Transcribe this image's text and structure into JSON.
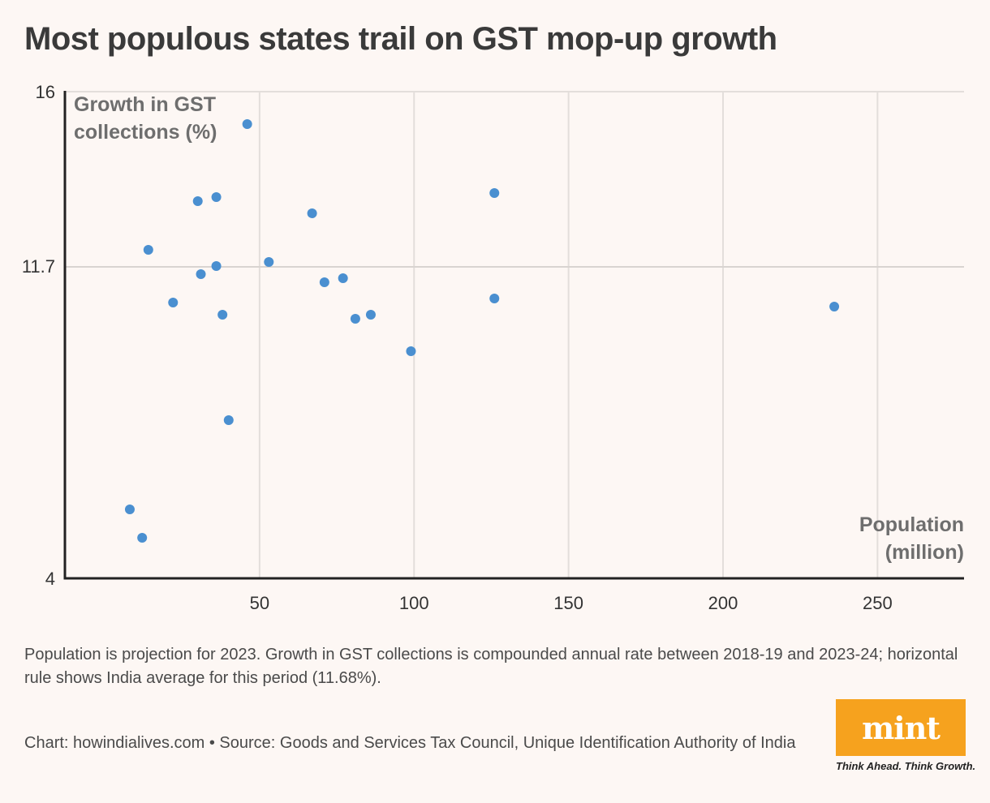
{
  "title": "Most populous states trail on GST mop-up growth",
  "chart_data": {
    "type": "scatter",
    "title": "Most populous states trail on GST mop-up growth",
    "xlabel": "Population (million)",
    "ylabel": "Growth in GST collections (%)",
    "xlim": [
      -13,
      278
    ],
    "ylim": [
      4,
      16
    ],
    "xticks": [
      50,
      100,
      150,
      200,
      250
    ],
    "yticks": [
      4,
      11.7,
      16
    ],
    "ytick_labels": [
      "4",
      "11.7",
      "16"
    ],
    "reference_line": {
      "y": 11.68,
      "label": "India average"
    },
    "point_color": "#4a8fd0",
    "points": [
      {
        "x": 46,
        "y": 15.2
      },
      {
        "x": 30,
        "y": 13.3
      },
      {
        "x": 36,
        "y": 13.4
      },
      {
        "x": 67,
        "y": 13.0
      },
      {
        "x": 126,
        "y": 13.5
      },
      {
        "x": 14,
        "y": 12.1
      },
      {
        "x": 36,
        "y": 11.7
      },
      {
        "x": 31,
        "y": 11.5
      },
      {
        "x": 53,
        "y": 11.8
      },
      {
        "x": 71,
        "y": 11.3
      },
      {
        "x": 77,
        "y": 11.4
      },
      {
        "x": 22,
        "y": 10.8
      },
      {
        "x": 38,
        "y": 10.5
      },
      {
        "x": 126,
        "y": 10.9
      },
      {
        "x": 236,
        "y": 10.7
      },
      {
        "x": 81,
        "y": 10.4
      },
      {
        "x": 86,
        "y": 10.5
      },
      {
        "x": 99,
        "y": 9.6
      },
      {
        "x": 40,
        "y": 7.9
      },
      {
        "x": 8,
        "y": 5.7
      },
      {
        "x": 12,
        "y": 5.0
      }
    ]
  },
  "axis": {
    "ylabel_line1": "Growth in GST",
    "ylabel_line2": "collections (%)",
    "xlabel_line1": "Population",
    "xlabel_line2": "(million)"
  },
  "footer": {
    "note": "Population is projection for 2023. Growth in GST collections is compounded annual rate between 2018-19 and 2023-24; horizontal rule shows India average for this period (11.68%).",
    "source": "Chart: howindialives.com • Source: Goods and Services Tax Council, Unique Identification Authority of India"
  },
  "logo": {
    "name": "mint",
    "tagline": "Think Ahead. Think Growth."
  },
  "colors": {
    "background": "#fdf7f4",
    "points": "#4a8fd0",
    "brand": "#f6a21e"
  }
}
